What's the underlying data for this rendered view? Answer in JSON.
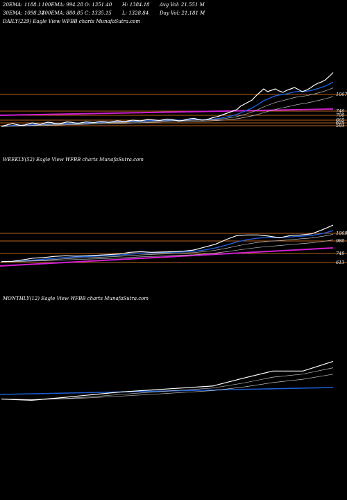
{
  "header": {
    "row1": [
      "20EMA: 1188.1",
      "100EMA: 994.28",
      "O: 1351.40",
      "H: 1384.18",
      "Avg Vol: 21.551 M"
    ],
    "row2": [
      "30EMA: 1098.34",
      "200EMA: 880.85",
      "C: 1335.15",
      "L: 1328.84",
      "Day Vol: 21.181 M"
    ]
  },
  "colors": {
    "background": "#000000",
    "price": "#ffffff",
    "ema_fast": "#1e5fd6",
    "ema_slow": "#c0c0c0",
    "support": "#b8621b",
    "trend": "#d020d0"
  },
  "chart_data": [
    {
      "type": "line",
      "title": "DAILY(229) Eagle   View  WFBB charts MunafaSutra.com",
      "price_labels": [
        "1067",
        "746",
        "700",
        "665",
        "625",
        "593"
      ],
      "series": [
        {
          "values": [
            560,
            575,
            590,
            600,
            585,
            575,
            580,
            595,
            610,
            600,
            590,
            605,
            620,
            615,
            600,
            595,
            610,
            625,
            620,
            610,
            605,
            615,
            625,
            620,
            615,
            625,
            630,
            625,
            620,
            630,
            640,
            635,
            630,
            640,
            650,
            645,
            640,
            650,
            660,
            655,
            650,
            645,
            655,
            665,
            660,
            650,
            640,
            645,
            660,
            670,
            675,
            660,
            650,
            655,
            670,
            690,
            700,
            720,
            740,
            760,
            780,
            800,
            850,
            880,
            910,
            940,
            1000,
            1050,
            1100,
            1060,
            1080,
            1100,
            1070,
            1050,
            1080,
            1100,
            1120,
            1090,
            1060,
            1080,
            1110,
            1150,
            1180,
            1200,
            1230,
            1280,
            1335
          ]
        }
      ],
      "ylim": [
        480,
        1330
      ]
    },
    {
      "type": "line",
      "title": "WEEKLY(52) Eagle   View  WFBB charts MunafaSutra.com",
      "price_labels": [
        "1069",
        "980",
        "749",
        "613"
      ],
      "series": [
        {
          "values": [
            600,
            605,
            630,
            660,
            670,
            690,
            700,
            695,
            700,
            710,
            720,
            730,
            760,
            770,
            760,
            765,
            770,
            780,
            800,
            850,
            900,
            980,
            1050,
            1060,
            1060,
            1040,
            1010,
            1050,
            1060,
            1080,
            1150,
            1230
          ]
        }
      ],
      "ylim": [
        500,
        1400
      ]
    },
    {
      "type": "line",
      "title": "MONTHLY(12) Eagle   View  WFBB charts MunafaSutra.com",
      "series": [
        {
          "values": [
            570,
            545,
            600,
            660,
            720,
            760,
            800,
            840,
            1000,
            1150,
            1150,
            1350
          ]
        }
      ],
      "ylim": [
        350,
        1500
      ]
    }
  ]
}
